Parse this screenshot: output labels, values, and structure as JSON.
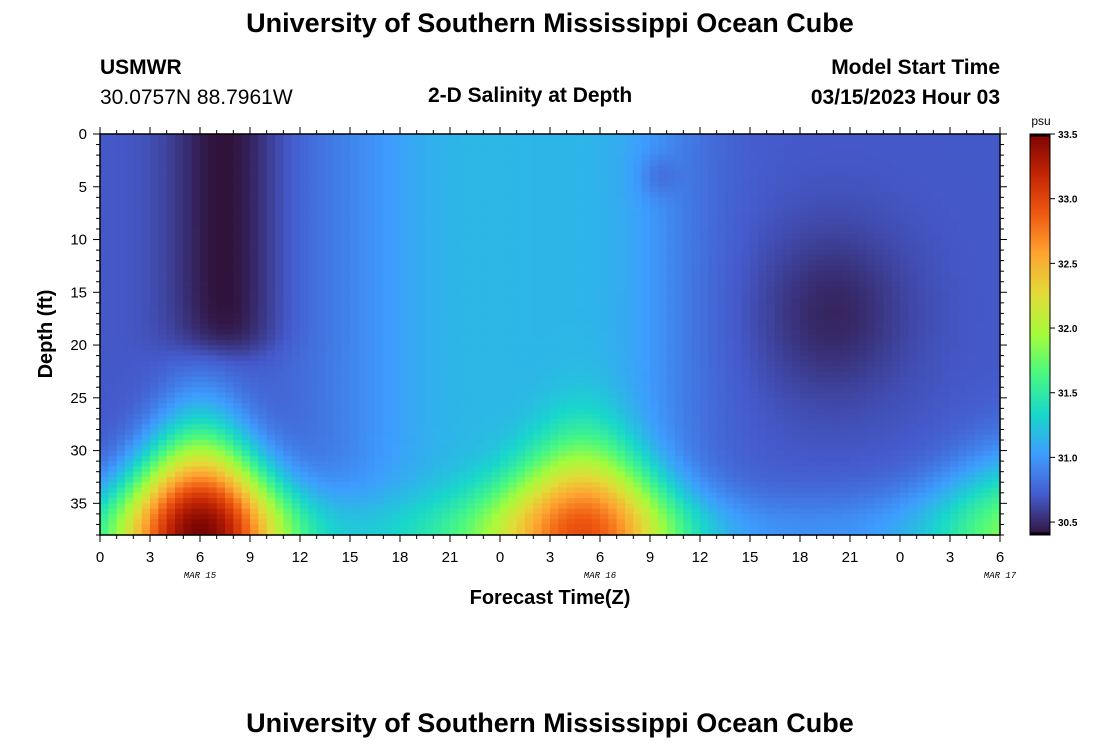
{
  "header": {
    "title": "University of Southern Mississippi Ocean Cube",
    "station": "USMWR",
    "coords": "30.0757N  88.7961W",
    "product": "2-D Salinity at Depth",
    "model_start_label": "Model Start Time",
    "model_start_value": "03/15/2023 Hour 03"
  },
  "footer": {
    "title": "University of Southern Mississippi Ocean Cube"
  },
  "chart_data": {
    "type": "heatmap",
    "xlabel": "Forecast Time(Z)",
    "ylabel": "Depth (ft)",
    "x_tick_labels": [
      "0",
      "3",
      "6",
      "9",
      "12",
      "15",
      "18",
      "21",
      "0",
      "3",
      "6",
      "9",
      "12",
      "15",
      "18",
      "21",
      "0",
      "3",
      "6"
    ],
    "date_labels": [
      {
        "label": "MAR 15",
        "hours": 6
      },
      {
        "label": "MAR 16",
        "hours": 30
      },
      {
        "label": "MAR 17",
        "hours": 54
      }
    ],
    "xlim_hours": [
      0,
      54
    ],
    "y_ticks": [
      0,
      5,
      10,
      15,
      20,
      25,
      30,
      35
    ],
    "ylim": [
      0,
      38
    ],
    "colorbar": {
      "unit": "psu",
      "min": 30.4,
      "max": 33.5,
      "tick_labels": [
        "30.5",
        "31.0",
        "31.5",
        "32.0",
        "32.5",
        "33.0",
        "33.5"
      ],
      "ticks": [
        30.5,
        31.0,
        31.5,
        32.0,
        32.5,
        33.0,
        33.5
      ],
      "colormap": "turbo"
    },
    "grid": false,
    "legend": "colorbar-right"
  }
}
